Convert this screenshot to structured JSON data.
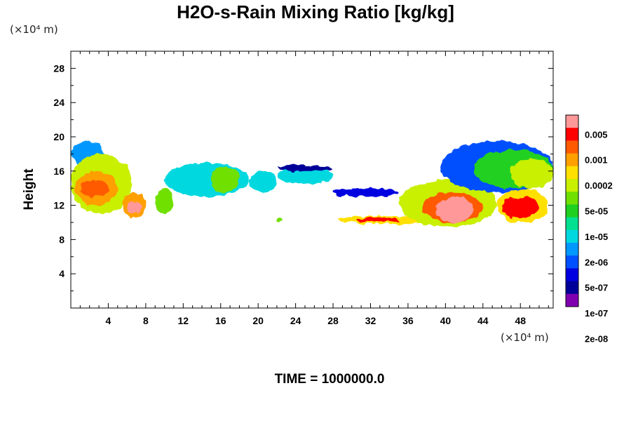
{
  "chart_data": {
    "type": "heatmap",
    "title": "H2O-s-Rain Mixing Ratio [kg/kg]",
    "xlabel": "",
    "ylabel": "Height",
    "x_unit": "(×10⁴ m)",
    "y_unit": "(×10⁴ m)",
    "xlim": [
      0,
      51.5
    ],
    "ylim": [
      0,
      30
    ],
    "x_ticks": [
      "4",
      "8",
      "12",
      "16",
      "20",
      "24",
      "28",
      "32",
      "36",
      "40",
      "44",
      "48"
    ],
    "y_ticks": [
      "4",
      "8",
      "12",
      "16",
      "20",
      "24",
      "28"
    ],
    "time_label": "TIME = 1000000.0",
    "colorbar": {
      "labels": [
        "0.005",
        "0.001",
        "0.0002",
        "5e-05",
        "1e-05",
        "2e-06",
        "5e-07",
        "1e-07",
        "2e-08"
      ],
      "colors": [
        "#ff9898",
        "#ff0000",
        "#ff5a00",
        "#ffa000",
        "#ffe000",
        "#c8f000",
        "#70e000",
        "#20d020",
        "#00e090",
        "#00d8e0",
        "#0098ff",
        "#0050ff",
        "#0000e0",
        "#000098",
        "#8000b0"
      ]
    },
    "regions": [
      {
        "x": [
          0,
          3.5
        ],
        "y": [
          16.5,
          19.5
        ],
        "level": 4
      },
      {
        "x": [
          0,
          6.5
        ],
        "y": [
          11,
          18
        ],
        "level": 9
      },
      {
        "x": [
          0.5,
          5
        ],
        "y": [
          12,
          16
        ],
        "level": 11
      },
      {
        "x": [
          1,
          4
        ],
        "y": [
          13,
          15
        ],
        "level": 12
      },
      {
        "x": [
          5.5,
          8
        ],
        "y": [
          10.5,
          13.5
        ],
        "level": 11
      },
      {
        "x": [
          6,
          7.5
        ],
        "y": [
          11,
          12.5
        ],
        "level": 14
      },
      {
        "x": [
          9,
          11
        ],
        "y": [
          11,
          14
        ],
        "level": 8
      },
      {
        "x": [
          10,
          19
        ],
        "y": [
          13,
          17
        ],
        "level": 5
      },
      {
        "x": [
          15,
          18
        ],
        "y": [
          13.5,
          16.5
        ],
        "level": 8
      },
      {
        "x": [
          19,
          22
        ],
        "y": [
          13.5,
          16
        ],
        "level": 5
      },
      {
        "x": [
          22,
          28
        ],
        "y": [
          14.5,
          16.5
        ],
        "level": 5
      },
      {
        "x": [
          22,
          28
        ],
        "y": [
          16,
          16.7
        ],
        "level": 1
      },
      {
        "x": [
          22,
          22.5
        ],
        "y": [
          10,
          10.6
        ],
        "level": 8
      },
      {
        "x": [
          28,
          35
        ],
        "y": [
          13,
          14
        ],
        "level": 2
      },
      {
        "x": [
          28.5,
          38.5
        ],
        "y": [
          9.8,
          10.8
        ],
        "level": 10
      },
      {
        "x": [
          30.5,
          35
        ],
        "y": [
          10,
          10.6
        ],
        "level": 13
      },
      {
        "x": [
          35,
          45.5
        ],
        "y": [
          9.5,
          15
        ],
        "level": 9
      },
      {
        "x": [
          37.5,
          44
        ],
        "y": [
          10,
          13.5
        ],
        "level": 12
      },
      {
        "x": [
          39,
          43
        ],
        "y": [
          10,
          13
        ],
        "level": 14
      },
      {
        "x": [
          45.5,
          51
        ],
        "y": [
          10,
          14
        ],
        "level": 10
      },
      {
        "x": [
          46,
          50
        ],
        "y": [
          10.5,
          13
        ],
        "level": 13
      },
      {
        "x": [
          39.5,
          51.5
        ],
        "y": [
          13.5,
          19.5
        ],
        "level": 3
      },
      {
        "x": [
          43,
          51.5
        ],
        "y": [
          14,
          18.5
        ],
        "level": 7
      },
      {
        "x": [
          47,
          51.5
        ],
        "y": [
          14,
          17.5
        ],
        "level": 9
      }
    ]
  }
}
